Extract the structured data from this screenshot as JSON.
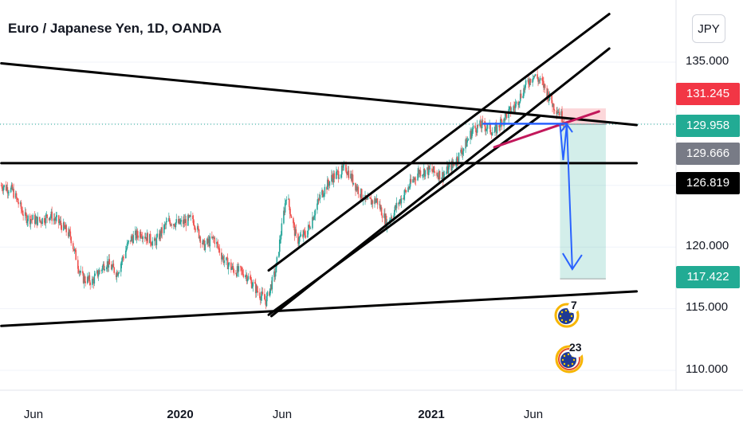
{
  "header": {
    "title": "Euro / Japanese Yen, 1D, OANDA",
    "currency": "JPY"
  },
  "price_axis": {
    "ticks": [
      "135.000",
      "120.000",
      "115.000",
      "110.000"
    ]
  },
  "price_badges": [
    {
      "label": "131.245",
      "color": "#f23645"
    },
    {
      "label": "129.958",
      "color": "#22ab94"
    },
    {
      "label": "129.666",
      "color": "#787b86"
    },
    {
      "label": "126.819",
      "color": "#000000"
    },
    {
      "label": "117.422",
      "color": "#22ab94"
    }
  ],
  "time_axis": {
    "ticks": [
      {
        "label": "Jun",
        "bold": false
      },
      {
        "label": "2020",
        "bold": true
      },
      {
        "label": "Jun",
        "bold": false
      },
      {
        "label": "2021",
        "bold": true
      },
      {
        "label": "Jun",
        "bold": false
      }
    ]
  },
  "events": [
    {
      "count": "7",
      "icon": "eu-flag-icon"
    },
    {
      "count": "23",
      "icon": "eu-flag-icon"
    }
  ],
  "chart_data": {
    "type": "candlestick",
    "symbol": "EURJPY",
    "interval": "1D",
    "ylim": [
      108,
      139
    ],
    "up_color": "#26a69a",
    "down_color": "#ef5350",
    "close_path": [
      [
        "2019-04-15",
        125.0
      ],
      [
        "2019-05-01",
        124.6
      ],
      [
        "2019-05-20",
        122.4
      ],
      [
        "2019-06-10",
        122.1
      ],
      [
        "2019-06-25",
        122.6
      ],
      [
        "2019-07-10",
        121.9
      ],
      [
        "2019-07-25",
        120.9
      ],
      [
        "2019-08-10",
        117.5
      ],
      [
        "2019-08-26",
        117.2
      ],
      [
        "2019-09-15",
        118.8
      ],
      [
        "2019-10-01",
        117.9
      ],
      [
        "2019-10-20",
        120.6
      ],
      [
        "2019-11-05",
        121.2
      ],
      [
        "2019-11-25",
        120.3
      ],
      [
        "2019-12-15",
        122.1
      ],
      [
        "2020-01-01",
        121.9
      ],
      [
        "2020-01-20",
        122.3
      ],
      [
        "2020-02-05",
        120.1
      ],
      [
        "2020-02-20",
        120.7
      ],
      [
        "2020-03-05",
        119.0
      ],
      [
        "2020-03-20",
        118.1
      ],
      [
        "2020-04-05",
        117.9
      ],
      [
        "2020-04-25",
        116.3
      ],
      [
        "2020-05-06",
        115.6
      ],
      [
        "2020-05-20",
        118.0
      ],
      [
        "2020-06-05",
        124.3
      ],
      [
        "2020-06-20",
        120.5
      ],
      [
        "2020-07-05",
        121.2
      ],
      [
        "2020-07-25",
        124.2
      ],
      [
        "2020-08-10",
        125.6
      ],
      [
        "2020-08-31",
        126.4
      ],
      [
        "2020-09-15",
        124.9
      ],
      [
        "2020-09-30",
        123.6
      ],
      [
        "2020-10-15",
        123.8
      ],
      [
        "2020-10-30",
        121.9
      ],
      [
        "2020-11-15",
        123.5
      ],
      [
        "2020-12-01",
        124.9
      ],
      [
        "2020-12-15",
        126.1
      ],
      [
        "2021-01-01",
        126.2
      ],
      [
        "2021-01-20",
        125.8
      ],
      [
        "2021-02-05",
        126.8
      ],
      [
        "2021-02-20",
        128.1
      ],
      [
        "2021-03-05",
        129.6
      ],
      [
        "2021-03-20",
        129.9
      ],
      [
        "2021-04-05",
        129.3
      ],
      [
        "2021-04-20",
        130.6
      ],
      [
        "2021-05-05",
        131.4
      ],
      [
        "2021-05-20",
        133.0
      ],
      [
        "2021-06-01",
        134.0
      ],
      [
        "2021-06-15",
        133.2
      ],
      [
        "2021-06-30",
        131.5
      ],
      [
        "2021-07-10",
        130.9
      ],
      [
        "2021-07-20",
        129.7
      ]
    ],
    "lines": [
      {
        "name": "upper-channel",
        "from": [
          "2020-05-10",
          118.1
        ],
        "to": [
          "2021-09-20",
          138.9
        ]
      },
      {
        "name": "lower-channel",
        "from": [
          "2020-05-14",
          114.4
        ],
        "to": [
          "2021-09-20",
          136.1
        ]
      },
      {
        "name": "mid-channel",
        "from": [
          "2020-05-10",
          114.5
        ],
        "to": [
          "2021-06-10",
          130.6
        ]
      },
      {
        "name": "descending-resistance",
        "from": [
          "2019-04-15",
          134.9
        ],
        "to": [
          "2021-10-30",
          129.9
        ]
      },
      {
        "name": "horizontal-support",
        "from": [
          "2019-04-15",
          126.8
        ],
        "to": [
          "2021-10-30",
          126.8
        ]
      },
      {
        "name": "ascending-support",
        "from": [
          "2019-04-15",
          113.6
        ],
        "to": [
          "2021-10-30",
          116.4
        ]
      },
      {
        "name": "pink-trendline",
        "from": [
          "2021-04-05",
          128.1
        ],
        "to": [
          "2021-09-05",
          131.0
        ]
      },
      {
        "name": "blue-level",
        "from": [
          "2021-03-20",
          130.0
        ],
        "to": [
          "2021-07-20",
          130.0
        ]
      }
    ],
    "position": {
      "entry": 129.958,
      "stop": 131.245,
      "target": 117.422,
      "start": "2021-07-10",
      "end": "2021-09-15"
    },
    "projection": [
      [
        "2021-07-10",
        129.958
      ],
      [
        "2021-07-20",
        129.958
      ],
      [
        "2021-07-28",
        118.2
      ]
    ],
    "last_price": 129.958
  }
}
